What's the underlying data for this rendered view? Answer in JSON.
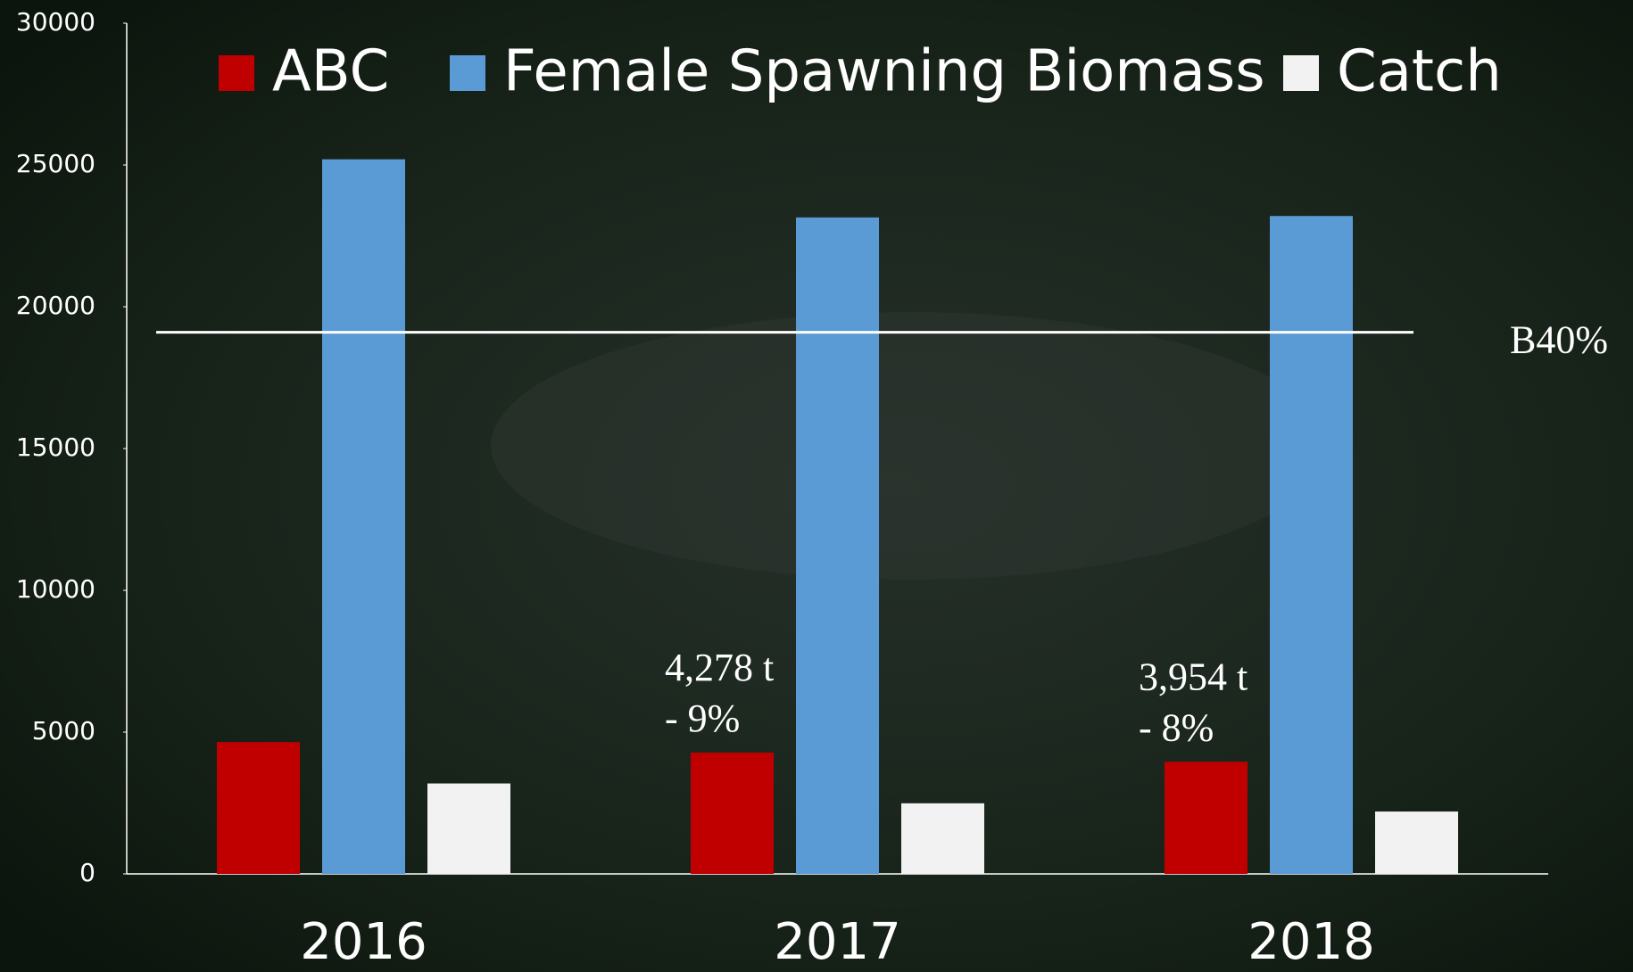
{
  "chart_data": {
    "type": "bar",
    "categories": [
      "2016",
      "2017",
      "2018"
    ],
    "series": [
      {
        "name": "ABC",
        "color": "#c00000",
        "values": [
          4650,
          4278,
          3954
        ],
        "value_labels": [
          null,
          "4,278 t",
          "3,954 t"
        ],
        "change_labels": [
          null,
          "- 9%",
          "- 8%"
        ]
      },
      {
        "name": "Female Spawning Biomass",
        "color": "#5b9bd5",
        "values": [
          25200,
          23150,
          23200
        ]
      },
      {
        "name": "Catch",
        "color": "#f2f2f2",
        "values": [
          3190,
          2490,
          2200
        ]
      }
    ],
    "ylim": [
      0,
      30000
    ],
    "yticks": [
      0,
      5000,
      10000,
      15000,
      20000,
      25000,
      30000
    ],
    "reference_lines": [
      {
        "value": 19100,
        "label": "B40%",
        "color": "#ffffff"
      }
    ],
    "legend": "top"
  }
}
